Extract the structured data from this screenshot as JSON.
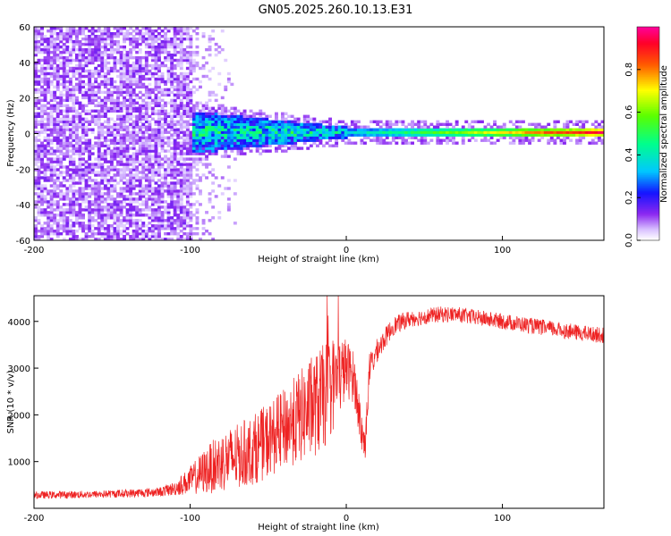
{
  "title": "GN05.2025.260.10.13.E31",
  "colors": {
    "snr_line": "#ee2222",
    "frame": "#000000",
    "background": "#ffffff"
  },
  "chart_data": [
    {
      "type": "heatmap",
      "title": "GN05.2025.260.10.13.E31",
      "xlabel": "Height of straight line (km)",
      "ylabel": "Frequency (Hz)",
      "xlim": [
        -200,
        165
      ],
      "ylim": [
        -60,
        60
      ],
      "xticks": [
        -200,
        -100,
        0,
        100
      ],
      "xtick_labels": [
        "-200",
        "-100",
        "0",
        "100"
      ],
      "yticks": [
        -60,
        -40,
        -20,
        0,
        20,
        40,
        60
      ],
      "ytick_labels": [
        "-60",
        "-40",
        "-20",
        "0",
        "20",
        "40",
        "60"
      ],
      "colorbar": {
        "label": "Normalized spectral amplitude",
        "range": [
          0,
          1
        ],
        "ticks": [
          0,
          0.2,
          0.4,
          0.6,
          0.8
        ],
        "tick_labels": [
          "0.0",
          "0.2",
          "0.4",
          "0.6",
          "0.8"
        ],
        "colormap": "rainbow (white-violet-blue-cyan-green-yellow-red-magenta)"
      },
      "description_regions": [
        {
          "x_range": [
            -200,
            -100
          ],
          "frequency_range": [
            -60,
            60
          ],
          "amplitude": [
            0.0,
            0.15
          ],
          "pattern": "broadband noise"
        },
        {
          "x_range": [
            -100,
            -70
          ],
          "frequency_range": [
            -60,
            60
          ],
          "amplitude": [
            0.0,
            0.05
          ],
          "pattern": "sparse noise"
        },
        {
          "x_range": [
            -100,
            0
          ],
          "frequency_range": [
            -12,
            12
          ],
          "amplitude": [
            0.2,
            0.55
          ],
          "pattern": "spreading carrier"
        },
        {
          "x_range": [
            0,
            165
          ],
          "frequency_range": [
            -3,
            3
          ],
          "amplitude": [
            0.3,
            1.0
          ],
          "pattern": "narrow carrier line"
        }
      ]
    },
    {
      "type": "line",
      "xlabel": "Height of straight line (km)",
      "ylabel": "SNR (10 * v/v)",
      "xlim": [
        -200,
        165
      ],
      "ylim": [
        0,
        4550
      ],
      "xticks": [
        -200,
        -100,
        0,
        100
      ],
      "xtick_labels": [
        "-200",
        "-100",
        "0",
        "100"
      ],
      "yticks": [
        1000,
        2000,
        3000,
        4000
      ],
      "ytick_labels": [
        "1000",
        "2000",
        "3000",
        "4000"
      ],
      "series": [
        {
          "name": "SNR",
          "x": [
            -200,
            -180,
            -160,
            -140,
            -120,
            -110,
            -100,
            -90,
            -80,
            -70,
            -60,
            -50,
            -40,
            -30,
            -20,
            -15,
            -10,
            -5,
            0,
            5,
            10,
            12,
            15,
            20,
            25,
            30,
            40,
            50,
            60,
            70,
            80,
            90,
            100,
            110,
            120,
            130,
            140,
            150,
            165
          ],
          "values": [
            280,
            290,
            300,
            320,
            350,
            420,
            600,
            800,
            1000,
            1100,
            1250,
            1450,
            1700,
            1950,
            2200,
            2350,
            2600,
            2800,
            3000,
            2800,
            1600,
            1350,
            3000,
            3400,
            3650,
            3900,
            4050,
            4100,
            4150,
            4150,
            4100,
            4050,
            4000,
            3950,
            3900,
            3850,
            3800,
            3750,
            3700
          ],
          "noise_amplitude": [
            80,
            80,
            80,
            90,
            100,
            150,
            300,
            500,
            650,
            700,
            750,
            800,
            850,
            1000,
            1100,
            1150,
            1100,
            900,
            650,
            550,
            450,
            350,
            350,
            250,
            220,
            200,
            180,
            170,
            170,
            170,
            170,
            170,
            170,
            170,
            170,
            170,
            170,
            170,
            170
          ]
        }
      ]
    }
  ]
}
